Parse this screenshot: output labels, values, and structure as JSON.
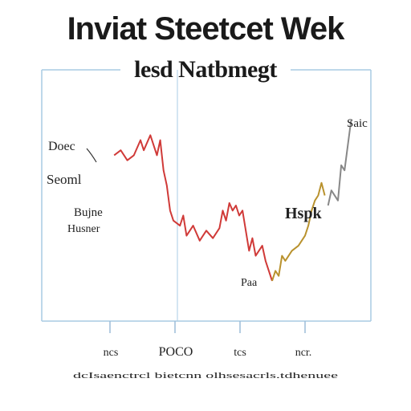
{
  "title": "Inviat Steetcet Wek",
  "subtitle": "lesd Natbmegt",
  "colors": {
    "axis": "#a9cbe4",
    "tick": "#9cbcd8",
    "red": "#d03a38",
    "gold": "#b9922e",
    "grey": "#888888",
    "text": "#222222"
  },
  "chart_data": {
    "type": "line",
    "title": "Inviat Steetcet Wek",
    "subtitle": "lesd Natbmegt",
    "xlabel": "",
    "ylabel": "",
    "x_tick_labels": [
      "ncs",
      "POCO",
      "tcs",
      "ncr."
    ],
    "annotations": [
      {
        "id": "a1",
        "text": "Doec"
      },
      {
        "id": "a2",
        "text": "Seoml"
      },
      {
        "id": "a3",
        "text": "Bujne"
      },
      {
        "id": "a4",
        "text": "Husner"
      },
      {
        "id": "a5",
        "text": "Hspk"
      },
      {
        "id": "a6",
        "text": "Saic"
      },
      {
        "id": "a7",
        "text": "Paa"
      }
    ],
    "footnote": "dcIsaenctrcl bietcnn olhsesacrls.tdhenuee",
    "x_range": [
      0,
      100
    ],
    "y_range": [
      0,
      100
    ],
    "series": [
      {
        "color": "#d03a38",
        "x": [
          22,
          24,
          26,
          28,
          30,
          31,
          33,
          35,
          36,
          37,
          38,
          39,
          40,
          42,
          43,
          44,
          46,
          48,
          50,
          52,
          54,
          55,
          56,
          57,
          58,
          59,
          60,
          61,
          62,
          63,
          64,
          65,
          67,
          68,
          69,
          70
        ],
        "y": [
          66,
          68,
          64,
          66,
          72,
          68,
          74,
          66,
          72,
          60,
          54,
          44,
          40,
          38,
          42,
          34,
          38,
          32,
          36,
          33,
          37,
          44,
          40,
          47,
          44,
          46,
          42,
          44,
          36,
          28,
          33,
          26,
          30,
          24,
          20,
          16
        ]
      },
      {
        "color": "#b9922e",
        "x": [
          70,
          71,
          72,
          73,
          74,
          76,
          78,
          80,
          81,
          82,
          83,
          84,
          85,
          86
        ],
        "y": [
          16,
          20,
          18,
          26,
          24,
          28,
          30,
          34,
          38,
          44,
          48,
          50,
          55,
          50
        ]
      },
      {
        "color": "#888888",
        "x": [
          87,
          88,
          90,
          91,
          92,
          93,
          94
        ],
        "y": [
          46,
          52,
          48,
          62,
          60,
          70,
          80
        ]
      }
    ]
  }
}
